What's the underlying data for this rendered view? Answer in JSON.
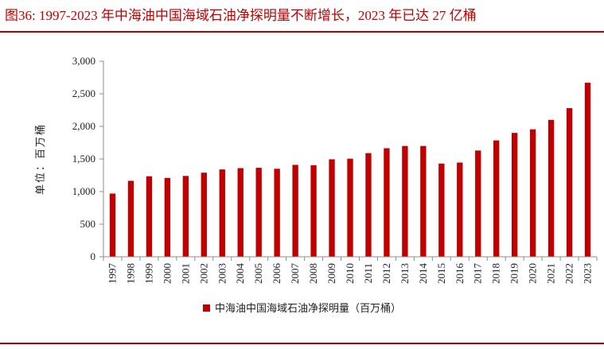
{
  "header": {
    "title": "图36:   1997-2023 年中海油中国海域石油净探明量不断增长，2023 年已达 27 亿桶"
  },
  "chart_data": {
    "type": "bar",
    "ylabel": "单位：百万桶",
    "ylim": [
      0,
      3000
    ],
    "yticks": [
      0,
      500,
      1000,
      1500,
      2000,
      2500,
      3000
    ],
    "ytick_labels": [
      "0",
      "500",
      "1,000",
      "1,500",
      "2,000",
      "2,500",
      "3,000"
    ],
    "grid": false,
    "legend_position": "bottom",
    "categories": [
      "1997",
      "1998",
      "1999",
      "2000",
      "2001",
      "2002",
      "2003",
      "2004",
      "2005",
      "2006",
      "2007",
      "2008",
      "2009",
      "2010",
      "2011",
      "2012",
      "2013",
      "2014",
      "2015",
      "2016",
      "2017",
      "2018",
      "2019",
      "2020",
      "2021",
      "2022",
      "2023"
    ],
    "series": [
      {
        "name": "中海油中国海域石油净探明量（百万桶）",
        "color": "#c00000",
        "values": [
          970,
          1165,
          1235,
          1210,
          1240,
          1290,
          1340,
          1360,
          1365,
          1350,
          1410,
          1405,
          1495,
          1505,
          1590,
          1665,
          1700,
          1700,
          1430,
          1445,
          1630,
          1785,
          1900,
          1955,
          2100,
          2280,
          2670
        ]
      }
    ]
  }
}
